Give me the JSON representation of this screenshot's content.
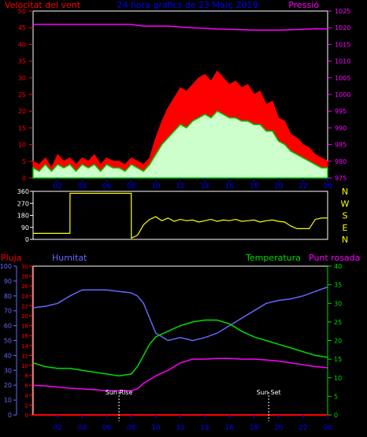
{
  "header": {
    "wind_label": "Velocitat del vent",
    "title": "24 hora grafics de  23 Març 2019",
    "pressure_label": "Pressió"
  },
  "colors": {
    "wind_gust": "#ff0000",
    "wind_avg_fill": "#ccffcc",
    "wind_avg_line": "#00cc00",
    "pressure": "#ff00ff",
    "direction": "#ffff00",
    "rain": "#ff0000",
    "humidity": "#6666ff",
    "temperature": "#00dd00",
    "dewpoint": "#ff00ff",
    "axis_time": "#0000ff",
    "frame": "#ffffff"
  },
  "chart_data": [
    {
      "type": "area",
      "name": "wind",
      "title": "24 hora grafics de  23 Març 2019",
      "ylabel": "Velocitat del vent",
      "ylim": [
        0,
        50
      ],
      "yticks": [
        0,
        5,
        10,
        15,
        20,
        25,
        30,
        35,
        40,
        45,
        50
      ],
      "secondary_ylabel": "Pressió",
      "secondary_ylim": [
        975,
        1025
      ],
      "secondary_yticks": [
        975,
        980,
        985,
        990,
        995,
        1000,
        1005,
        1010,
        1015,
        1020,
        1025
      ],
      "xlim": [
        0,
        24
      ],
      "xticks": [
        "02",
        "04",
        "06",
        "08",
        "10",
        "12",
        "14",
        "16",
        "18",
        "20",
        "22",
        "00"
      ],
      "series": [
        {
          "name": "gust",
          "x": [
            0,
            0.5,
            1,
            1.5,
            2,
            2.5,
            3,
            3.5,
            4,
            4.5,
            5,
            5.5,
            6,
            6.5,
            7,
            7.5,
            8,
            8.5,
            9,
            9.5,
            10,
            10.5,
            11,
            11.5,
            12,
            12.5,
            13,
            13.5,
            14,
            14.5,
            15,
            15.5,
            16,
            16.5,
            17,
            17.5,
            18,
            18.5,
            19,
            19.5,
            20,
            20.5,
            21,
            21.5,
            22,
            22.5,
            23,
            23.5,
            24
          ],
          "values": [
            5,
            4,
            6,
            3,
            7,
            5,
            6,
            4,
            6,
            5,
            7,
            4,
            6,
            5,
            5,
            4,
            6,
            5,
            4,
            6,
            12,
            17,
            21,
            24,
            27,
            26,
            28,
            30,
            31,
            29,
            32,
            30,
            28,
            29,
            27,
            28,
            25,
            26,
            22,
            23,
            18,
            17,
            13,
            12,
            10,
            9,
            7,
            6,
            5
          ]
        },
        {
          "name": "average",
          "x": [
            0,
            0.5,
            1,
            1.5,
            2,
            2.5,
            3,
            3.5,
            4,
            4.5,
            5,
            5.5,
            6,
            6.5,
            7,
            7.5,
            8,
            8.5,
            9,
            9.5,
            10,
            10.5,
            11,
            11.5,
            12,
            12.5,
            13,
            13.5,
            14,
            14.5,
            15,
            15.5,
            16,
            16.5,
            17,
            17.5,
            18,
            18.5,
            19,
            19.5,
            20,
            20.5,
            21,
            21.5,
            22,
            22.5,
            23,
            23.5,
            24
          ],
          "values": [
            3,
            2,
            4,
            2,
            4,
            3,
            4,
            2,
            4,
            3,
            4,
            2,
            4,
            3,
            3,
            2,
            4,
            3,
            2,
            4,
            7,
            10,
            12,
            14,
            16,
            15,
            17,
            18,
            19,
            18,
            20,
            19,
            18,
            18,
            17,
            17,
            16,
            16,
            14,
            14,
            11,
            10,
            8,
            7,
            6,
            5,
            4,
            3,
            3
          ]
        },
        {
          "name": "pressure",
          "axis": "secondary",
          "x": [
            0,
            1,
            2,
            3,
            4,
            5,
            6,
            7,
            8,
            9,
            10,
            11,
            12,
            13,
            14,
            15,
            16,
            17,
            18,
            19,
            20,
            21,
            22,
            23,
            24
          ],
          "values": [
            1021,
            1021,
            1021,
            1021,
            1021,
            1021,
            1021,
            1021,
            1021,
            1020.5,
            1020.5,
            1020.5,
            1020.2,
            1020,
            1019.8,
            1019.6,
            1019.5,
            1019.4,
            1019.3,
            1019.3,
            1019.3,
            1019.4,
            1019.5,
            1019.7,
            1019.6
          ]
        }
      ]
    },
    {
      "type": "line",
      "name": "direction",
      "ylim": [
        0,
        360
      ],
      "yticks": [
        0,
        90,
        180,
        270,
        360
      ],
      "compass_labels": [
        "N",
        "W",
        "S",
        "E",
        "N"
      ],
      "xlim": [
        0,
        24
      ],
      "series": [
        {
          "name": "direction",
          "x": [
            0,
            3,
            3.01,
            8,
            8.01,
            8.5,
            9,
            9.5,
            10,
            10.5,
            11,
            11.5,
            12,
            12.5,
            13,
            13.5,
            14,
            14.5,
            15,
            15.5,
            16,
            16.5,
            17,
            17.5,
            18,
            18.5,
            19,
            19.5,
            20,
            20.5,
            21,
            21.5,
            22,
            22.5,
            23,
            23.5,
            24
          ],
          "values": [
            45,
            45,
            345,
            345,
            10,
            30,
            110,
            150,
            170,
            140,
            160,
            135,
            150,
            140,
            145,
            130,
            140,
            150,
            135,
            145,
            140,
            150,
            135,
            140,
            145,
            130,
            140,
            145,
            135,
            130,
            100,
            80,
            80,
            80,
            150,
            160,
            160
          ]
        }
      ]
    },
    {
      "type": "line",
      "name": "climate",
      "labels": {
        "rain": "Pluja",
        "humidity": "Humitat",
        "temperature": "Temperatura",
        "dewpoint": "Punt rosada"
      },
      "rain_ylim": [
        0,
        100
      ],
      "rain_yticks": [
        0,
        10,
        20,
        30,
        40,
        50,
        60,
        70,
        80,
        90,
        100
      ],
      "humidity_ylim": [
        0,
        30
      ],
      "humidity_yticks": [
        0,
        2,
        4,
        6,
        8,
        10,
        12,
        14,
        16,
        18,
        20,
        22,
        24,
        26,
        28,
        30
      ],
      "temperature_ylim": [
        0,
        40
      ],
      "temperature_yticks": [
        0,
        5,
        10,
        15,
        20,
        25,
        30,
        35,
        40
      ],
      "xlim": [
        0,
        24
      ],
      "xticks": [
        "02",
        "04",
        "06",
        "08",
        "10",
        "12",
        "14",
        "16",
        "18",
        "20",
        "22",
        "00"
      ],
      "annotations": [
        {
          "label": "Sun Rise",
          "x": 7.0
        },
        {
          "label": "Sun Set",
          "x": 19.2
        }
      ],
      "series": [
        {
          "name": "Pluja",
          "axis": "rain",
          "x": [
            0,
            24
          ],
          "values": [
            0,
            0
          ]
        },
        {
          "name": "Humitat",
          "axis": "rain",
          "x": [
            0,
            1,
            2,
            3,
            4,
            5,
            6,
            7,
            8,
            8.5,
            9,
            9.5,
            10,
            11,
            12,
            13,
            14,
            15,
            16,
            17,
            18,
            19,
            20,
            21,
            22,
            23,
            24
          ],
          "values": [
            72,
            73,
            75,
            80,
            84,
            84,
            84,
            83,
            82,
            80,
            75,
            65,
            55,
            50,
            52,
            50,
            52,
            55,
            60,
            65,
            70,
            75,
            77,
            78,
            80,
            83,
            86
          ]
        },
        {
          "name": "Temperatura",
          "axis": "temperature",
          "x": [
            0,
            1,
            2,
            3,
            4,
            5,
            6,
            7,
            8,
            8.5,
            9,
            9.5,
            10,
            11,
            12,
            13,
            14,
            15,
            16,
            17,
            18,
            19,
            20,
            21,
            22,
            23,
            24
          ],
          "values": [
            14,
            13,
            12.5,
            12.5,
            12,
            11.5,
            11,
            10.5,
            11,
            13,
            16,
            19,
            21,
            22.5,
            24,
            25,
            25.5,
            25.5,
            24.5,
            22.5,
            21,
            20,
            19,
            18,
            17,
            16,
            15.5
          ]
        },
        {
          "name": "Punt rosada",
          "axis": "temperature",
          "x": [
            0,
            1,
            2,
            3,
            4,
            5,
            6,
            7,
            8,
            8.5,
            9,
            9.5,
            10,
            11,
            12,
            13,
            14,
            15,
            16,
            17,
            18,
            19,
            20,
            21,
            22,
            23,
            24
          ],
          "values": [
            8,
            7.8,
            7.5,
            7.2,
            7,
            6.8,
            6.5,
            6.5,
            6.5,
            7,
            8.5,
            9.5,
            10.5,
            12,
            14,
            15,
            15,
            15.2,
            15.2,
            15,
            15,
            14.8,
            14.5,
            14,
            13.5,
            13,
            12.7
          ]
        }
      ]
    }
  ]
}
